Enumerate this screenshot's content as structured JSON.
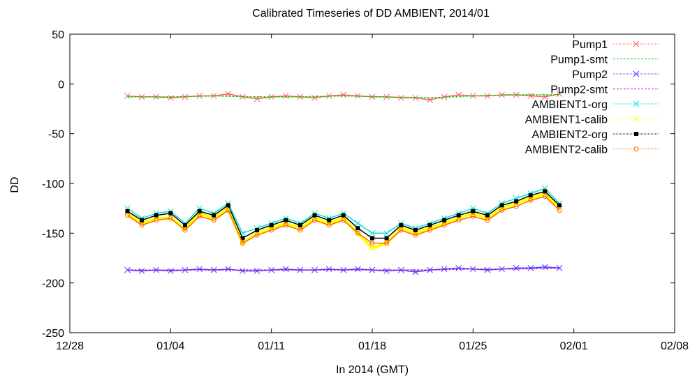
{
  "chart_data": {
    "type": "line",
    "title": "Calibrated Timeseries of DD AMBIENT, 2014/01",
    "xlabel": "In 2014 (GMT)",
    "ylabel": "DD",
    "xlim": [
      "2013-12-28",
      "2014-02-08"
    ],
    "ylim": [
      -250,
      50
    ],
    "x_ticks": [
      {
        "date": "2013-12-28",
        "label": "12/28"
      },
      {
        "date": "2014-01-04",
        "label": "01/04"
      },
      {
        "date": "2014-01-11",
        "label": "01/11"
      },
      {
        "date": "2014-01-18",
        "label": "01/18"
      },
      {
        "date": "2014-01-25",
        "label": "01/25"
      },
      {
        "date": "2014-02-01",
        "label": "02/01"
      },
      {
        "date": "2014-02-08",
        "label": "02/08"
      }
    ],
    "y_ticks": [
      50,
      0,
      -50,
      -100,
      -150,
      -200,
      -250
    ],
    "grid": false,
    "legend_position": "top-right",
    "series": [
      {
        "name": "Pump1",
        "color": "#ff6060",
        "marker": "x",
        "x": [
          "2014-01-01",
          "2014-01-02",
          "2014-01-03",
          "2014-01-04",
          "2014-01-05",
          "2014-01-06",
          "2014-01-07",
          "2014-01-08",
          "2014-01-09",
          "2014-01-10",
          "2014-01-11",
          "2014-01-12",
          "2014-01-13",
          "2014-01-14",
          "2014-01-15",
          "2014-01-16",
          "2014-01-17",
          "2014-01-18",
          "2014-01-19",
          "2014-01-20",
          "2014-01-21",
          "2014-01-22",
          "2014-01-23",
          "2014-01-24",
          "2014-01-25",
          "2014-01-26",
          "2014-01-27",
          "2014-01-28",
          "2014-01-29",
          "2014-01-30",
          "2014-01-31"
        ],
        "y": [
          -12,
          -13,
          -13,
          -14,
          -13,
          -12,
          -12,
          -10,
          -13,
          -15,
          -13,
          -12,
          -13,
          -14,
          -12,
          -11,
          -12,
          -13,
          -13,
          -14,
          -14,
          -16,
          -13,
          -11,
          -12,
          -12,
          -11,
          -11,
          -12,
          -13,
          -10
        ]
      },
      {
        "name": "Pump1-smt",
        "color": "#00cc00",
        "marker": "none",
        "x": [
          "2014-01-01",
          "2014-01-04",
          "2014-01-07",
          "2014-01-10",
          "2014-01-13",
          "2014-01-16",
          "2014-01-19",
          "2014-01-22",
          "2014-01-25",
          "2014-01-28",
          "2014-01-31"
        ],
        "y": [
          -13,
          -13,
          -12,
          -13,
          -13,
          -12,
          -13,
          -14,
          -12,
          -11,
          -11
        ]
      },
      {
        "name": "Pump2",
        "color": "#4040ff",
        "marker": "x",
        "x": [
          "2014-01-01",
          "2014-01-02",
          "2014-01-03",
          "2014-01-04",
          "2014-01-05",
          "2014-01-06",
          "2014-01-07",
          "2014-01-08",
          "2014-01-09",
          "2014-01-10",
          "2014-01-11",
          "2014-01-12",
          "2014-01-13",
          "2014-01-14",
          "2014-01-15",
          "2014-01-16",
          "2014-01-17",
          "2014-01-18",
          "2014-01-19",
          "2014-01-20",
          "2014-01-21",
          "2014-01-22",
          "2014-01-23",
          "2014-01-24",
          "2014-01-25",
          "2014-01-26",
          "2014-01-27",
          "2014-01-28",
          "2014-01-29",
          "2014-01-30",
          "2014-01-31"
        ],
        "y": [
          -187,
          -188,
          -187,
          -188,
          -187,
          -186,
          -187,
          -186,
          -188,
          -188,
          -187,
          -186,
          -187,
          -187,
          -186,
          -187,
          -186,
          -187,
          -188,
          -187,
          -189,
          -187,
          -186,
          -185,
          -186,
          -187,
          -186,
          -185,
          -185,
          -184,
          -185
        ]
      },
      {
        "name": "Pump2-smt",
        "color": "#cc00cc",
        "marker": "none",
        "x": [
          "2014-01-01",
          "2014-01-04",
          "2014-01-07",
          "2014-01-10",
          "2014-01-13",
          "2014-01-16",
          "2014-01-19",
          "2014-01-22",
          "2014-01-25",
          "2014-01-28",
          "2014-01-31"
        ],
        "y": [
          -187,
          -187,
          -187,
          -187,
          -187,
          -187,
          -187,
          -187,
          -186,
          -186,
          -185
        ]
      },
      {
        "name": "AMBIENT1-org",
        "color": "#00e0e0",
        "marker": "x",
        "x": [
          "2014-01-01",
          "2014-01-02",
          "2014-01-03",
          "2014-01-04",
          "2014-01-05",
          "2014-01-06",
          "2014-01-07",
          "2014-01-08",
          "2014-01-09",
          "2014-01-10",
          "2014-01-11",
          "2014-01-12",
          "2014-01-13",
          "2014-01-14",
          "2014-01-15",
          "2014-01-16",
          "2014-01-17",
          "2014-01-18",
          "2014-01-19",
          "2014-01-20",
          "2014-01-21",
          "2014-01-22",
          "2014-01-23",
          "2014-01-24",
          "2014-01-25",
          "2014-01-26",
          "2014-01-27",
          "2014-01-28",
          "2014-01-29",
          "2014-01-30",
          "2014-01-31"
        ],
        "y": [
          -125,
          -135,
          -130,
          -128,
          -140,
          -125,
          -130,
          -120,
          -150,
          -145,
          -140,
          -135,
          -140,
          -130,
          -135,
          -130,
          -140,
          -150,
          -150,
          -140,
          -145,
          -140,
          -135,
          -130,
          -125,
          -130,
          -120,
          -115,
          -110,
          -105,
          -120
        ]
      },
      {
        "name": "AMBIENT1-calib",
        "color": "#ffff00",
        "marker": "x",
        "x": [
          "2014-01-01",
          "2014-01-02",
          "2014-01-03",
          "2014-01-04",
          "2014-01-05",
          "2014-01-06",
          "2014-01-07",
          "2014-01-08",
          "2014-01-09",
          "2014-01-10",
          "2014-01-11",
          "2014-01-12",
          "2014-01-13",
          "2014-01-14",
          "2014-01-15",
          "2014-01-16",
          "2014-01-17",
          "2014-01-18",
          "2014-01-19",
          "2014-01-20",
          "2014-01-21",
          "2014-01-22",
          "2014-01-23",
          "2014-01-24",
          "2014-01-25",
          "2014-01-26",
          "2014-01-27",
          "2014-01-28",
          "2014-01-29",
          "2014-01-30",
          "2014-01-31"
        ],
        "y": [
          -130,
          -140,
          -135,
          -135,
          -145,
          -130,
          -135,
          -125,
          -160,
          -150,
          -145,
          -140,
          -145,
          -135,
          -140,
          -135,
          -150,
          -165,
          -160,
          -145,
          -150,
          -145,
          -140,
          -135,
          -130,
          -135,
          -125,
          -120,
          -115,
          -110,
          -125
        ]
      },
      {
        "name": "AMBIENT2-org",
        "color": "#000000",
        "marker": "square",
        "x": [
          "2014-01-01",
          "2014-01-02",
          "2014-01-03",
          "2014-01-04",
          "2014-01-05",
          "2014-01-06",
          "2014-01-07",
          "2014-01-08",
          "2014-01-09",
          "2014-01-10",
          "2014-01-11",
          "2014-01-12",
          "2014-01-13",
          "2014-01-14",
          "2014-01-15",
          "2014-01-16",
          "2014-01-17",
          "2014-01-18",
          "2014-01-19",
          "2014-01-20",
          "2014-01-21",
          "2014-01-22",
          "2014-01-23",
          "2014-01-24",
          "2014-01-25",
          "2014-01-26",
          "2014-01-27",
          "2014-01-28",
          "2014-01-29",
          "2014-01-30",
          "2014-01-31"
        ],
        "y": [
          -128,
          -137,
          -132,
          -130,
          -142,
          -128,
          -132,
          -122,
          -155,
          -147,
          -142,
          -137,
          -142,
          -132,
          -137,
          -132,
          -145,
          -155,
          -155,
          -142,
          -147,
          -142,
          -137,
          -132,
          -128,
          -132,
          -122,
          -118,
          -112,
          -108,
          -122
        ]
      },
      {
        "name": "AMBIENT2-calib",
        "color": "#ff6600",
        "marker": "circle",
        "x": [
          "2014-01-01",
          "2014-01-02",
          "2014-01-03",
          "2014-01-04",
          "2014-01-05",
          "2014-01-06",
          "2014-01-07",
          "2014-01-08",
          "2014-01-09",
          "2014-01-10",
          "2014-01-11",
          "2014-01-12",
          "2014-01-13",
          "2014-01-14",
          "2014-01-15",
          "2014-01-16",
          "2014-01-17",
          "2014-01-18",
          "2014-01-19",
          "2014-01-20",
          "2014-01-21",
          "2014-01-22",
          "2014-01-23",
          "2014-01-24",
          "2014-01-25",
          "2014-01-26",
          "2014-01-27",
          "2014-01-28",
          "2014-01-29",
          "2014-01-30",
          "2014-01-31"
        ],
        "y": [
          -132,
          -142,
          -137,
          -135,
          -147,
          -133,
          -137,
          -127,
          -160,
          -152,
          -147,
          -142,
          -147,
          -137,
          -142,
          -137,
          -150,
          -160,
          -160,
          -147,
          -152,
          -147,
          -142,
          -137,
          -133,
          -137,
          -127,
          -123,
          -117,
          -113,
          -127
        ]
      }
    ]
  }
}
